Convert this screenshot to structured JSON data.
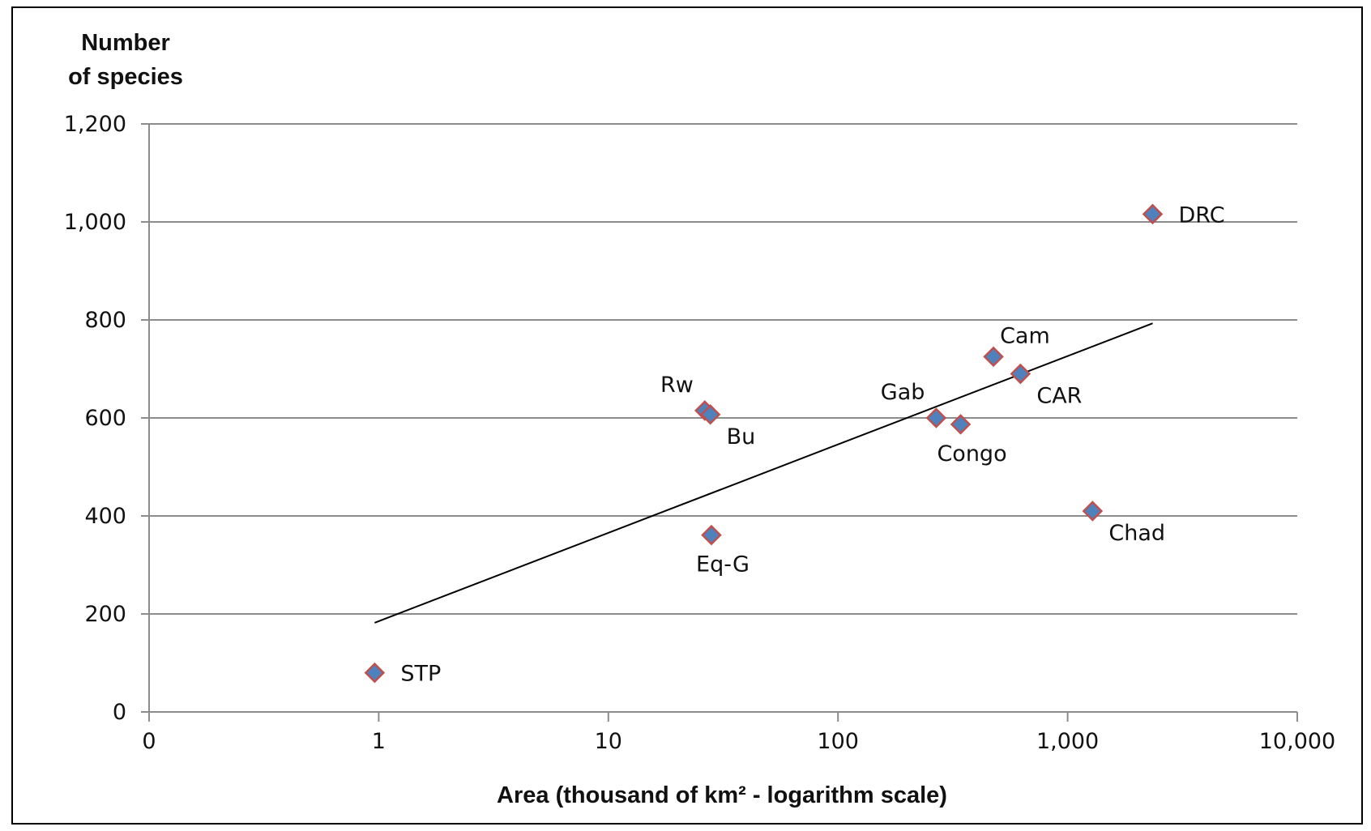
{
  "chart_data": {
    "type": "scatter",
    "title": "",
    "ylabel_lines": [
      "Number",
      "of species"
    ],
    "xlabel": "Area  (thousand of km² - logarithm scale)",
    "x_scale": "log",
    "xlim": [
      0.1,
      10000
    ],
    "ylim": [
      0,
      1200
    ],
    "x_ticks": [
      {
        "value": 0.1,
        "label": "0"
      },
      {
        "value": 1,
        "label": "1"
      },
      {
        "value": 10,
        "label": "10"
      },
      {
        "value": 100,
        "label": "100"
      },
      {
        "value": 1000,
        "label": "1,000"
      },
      {
        "value": 10000,
        "label": "10,000"
      }
    ],
    "y_ticks": [
      {
        "value": 0,
        "label": "0"
      },
      {
        "value": 200,
        "label": "200"
      },
      {
        "value": 400,
        "label": "400"
      },
      {
        "value": 600,
        "label": "600"
      },
      {
        "value": 800,
        "label": "800"
      },
      {
        "value": 1000,
        "label": "1,000"
      },
      {
        "value": 1200,
        "label": "1,200"
      }
    ],
    "grid": "horizontal",
    "marker_color": "#4f81bd",
    "marker_edge_color": "#c0504d",
    "points": [
      {
        "label": "STP",
        "x": 0.96,
        "y": 80,
        "label_pos": "right"
      },
      {
        "label": "Rw",
        "x": 26.3,
        "y": 615,
        "label_pos": "upper-left"
      },
      {
        "label": "Bu",
        "x": 27.8,
        "y": 607,
        "label_pos": "lower-right"
      },
      {
        "label": "Eq-G",
        "x": 28.1,
        "y": 361,
        "label_pos": "below"
      },
      {
        "label": "Gab",
        "x": 267.7,
        "y": 600,
        "label_pos": "upper-left"
      },
      {
        "label": "Congo",
        "x": 342,
        "y": 587,
        "label_pos": "below"
      },
      {
        "label": "Cam",
        "x": 475.4,
        "y": 725,
        "label_pos": "upper-right"
      },
      {
        "label": "CAR",
        "x": 623,
        "y": 690,
        "label_pos": "lower-right"
      },
      {
        "label": "Chad",
        "x": 1284,
        "y": 410,
        "label_pos": "lower-right"
      },
      {
        "label": "DRC",
        "x": 2345,
        "y": 1016,
        "label_pos": "right"
      }
    ],
    "trendline": {
      "x": [
        0.96,
        2345
      ],
      "y": [
        182,
        793
      ],
      "color": "#000000"
    }
  }
}
